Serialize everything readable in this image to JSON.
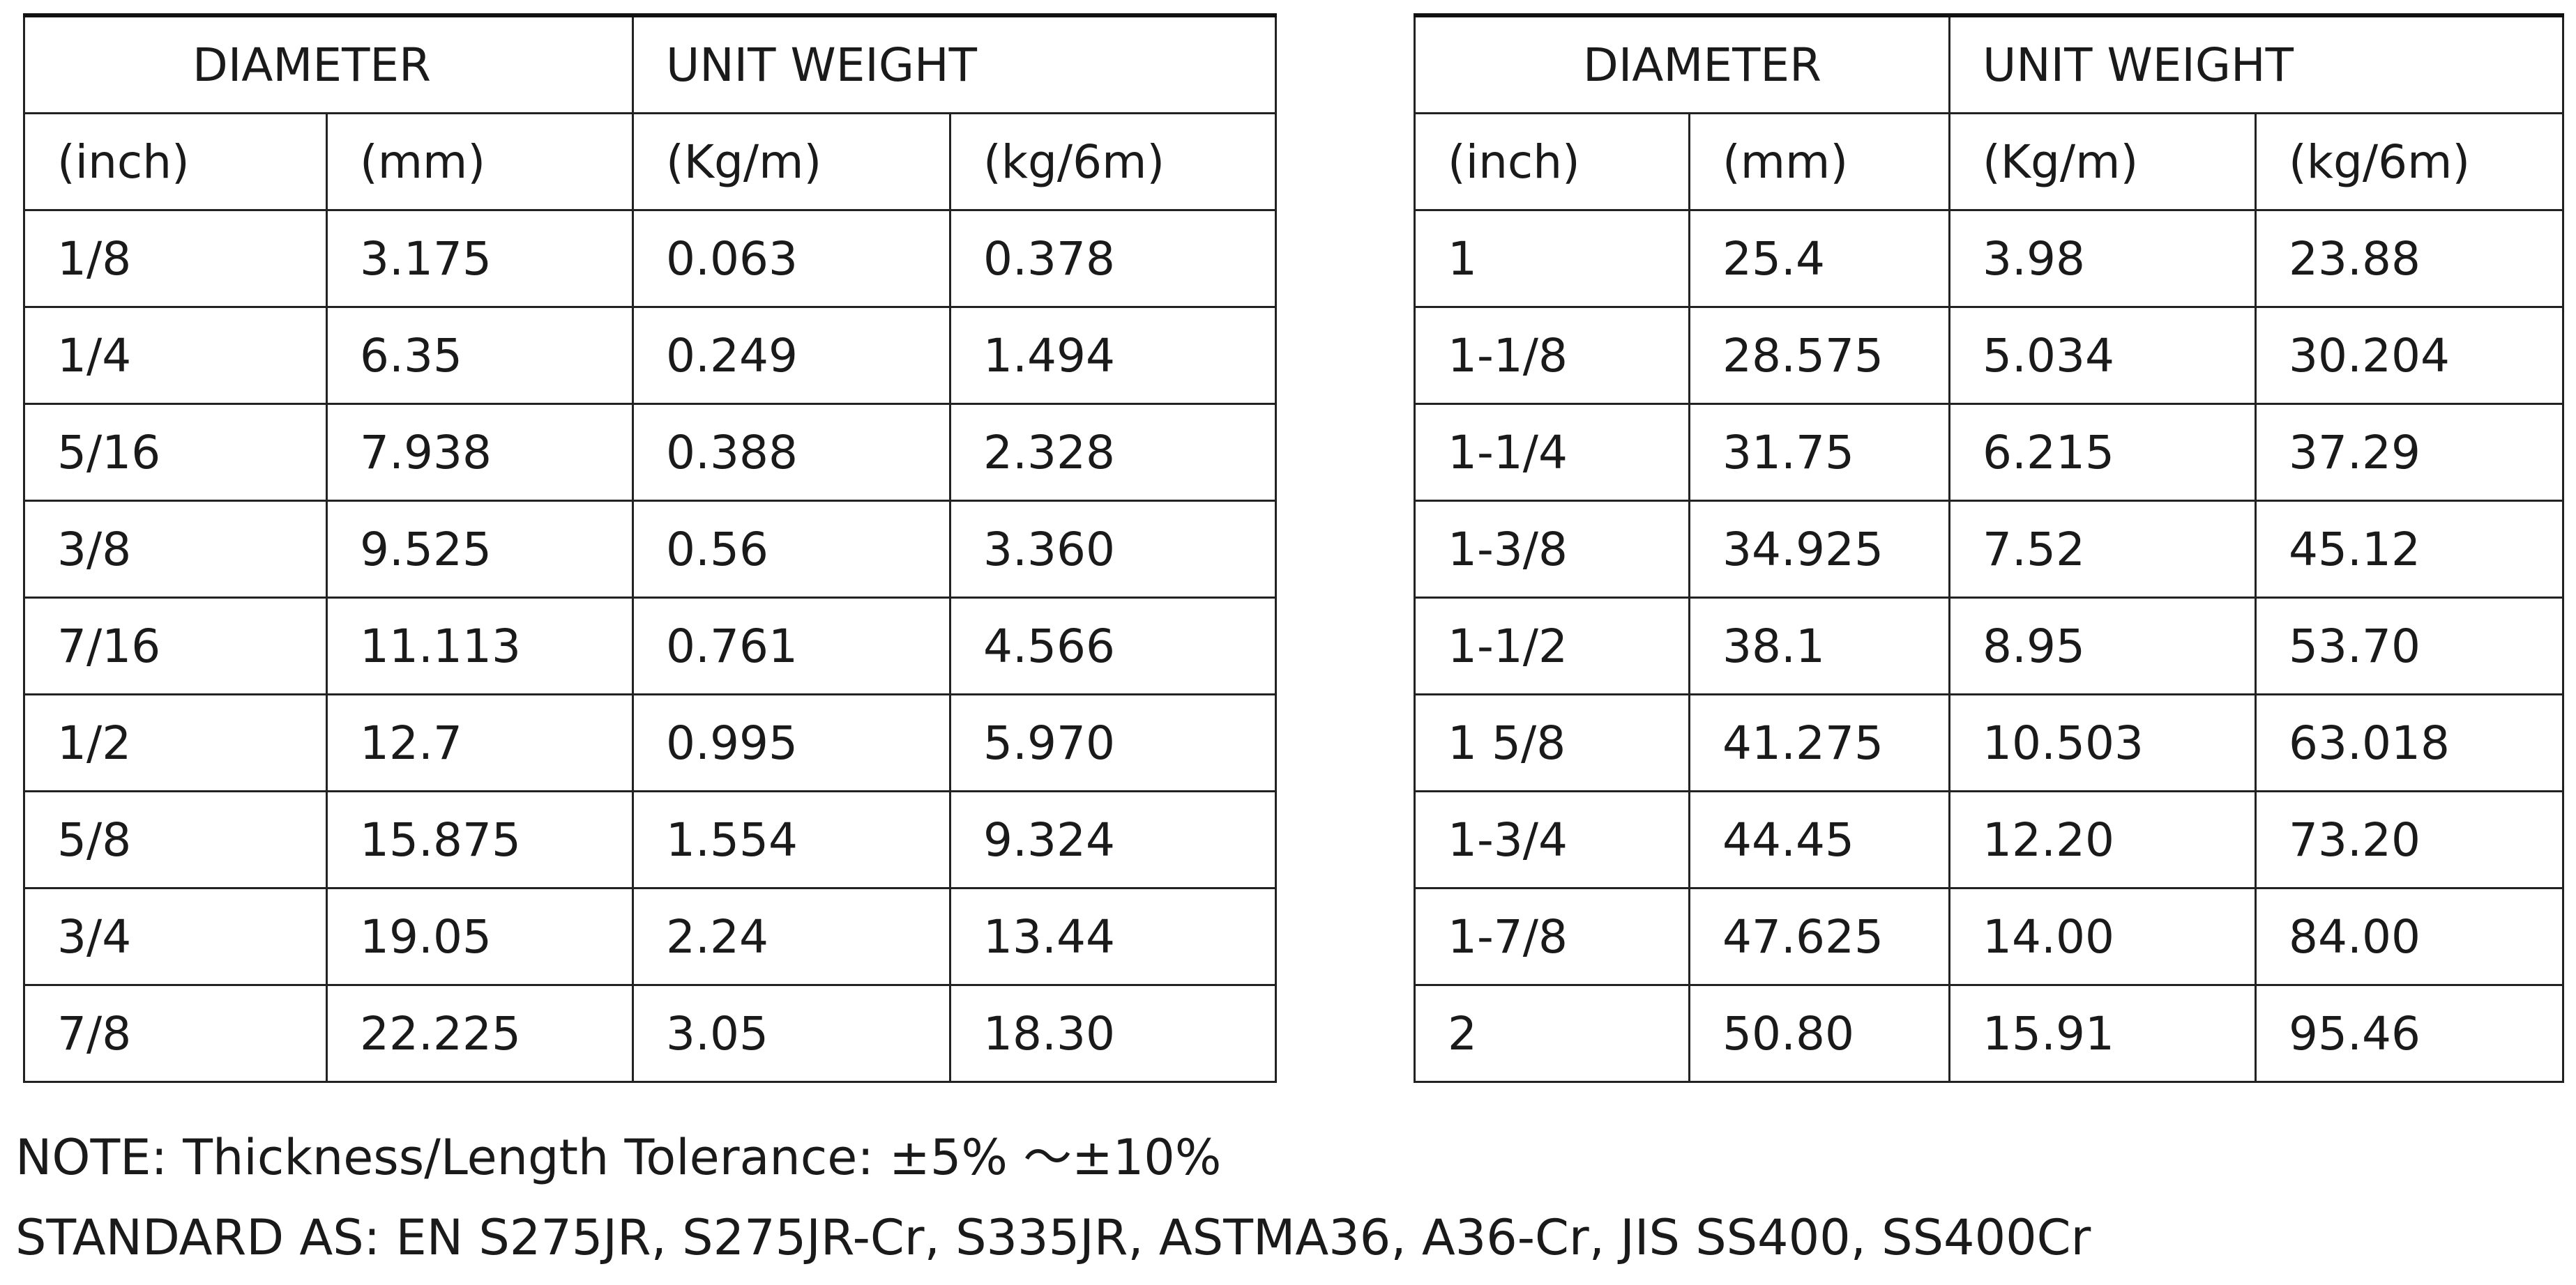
{
  "tables": [
    {
      "header": {
        "groups": [
          "DIAMETER",
          "UNIT WEIGHT"
        ],
        "units": [
          "(inch)",
          "(mm)",
          "(Kg/m)",
          "(kg/6m)"
        ]
      },
      "rows": [
        [
          "1/8",
          "3.175",
          "0.063",
          "0.378"
        ],
        [
          "1/4",
          "6.35",
          "0.249",
          "1.494"
        ],
        [
          "5/16",
          "7.938",
          "0.388",
          "2.328"
        ],
        [
          "3/8",
          "9.525",
          "0.56",
          "3.360"
        ],
        [
          "7/16",
          "11.113",
          "0.761",
          "4.566"
        ],
        [
          "1/2",
          "12.7",
          "0.995",
          "5.970"
        ],
        [
          "5/8",
          "15.875",
          "1.554",
          "9.324"
        ],
        [
          "3/4",
          "19.05",
          "2.24",
          "13.44"
        ],
        [
          "7/8",
          "22.225",
          "3.05",
          "18.30"
        ]
      ]
    },
    {
      "header": {
        "groups": [
          "DIAMETER",
          "UNIT WEIGHT"
        ],
        "units": [
          "(inch)",
          "(mm)",
          "(Kg/m)",
          "(kg/6m)"
        ]
      },
      "rows": [
        [
          "1",
          "25.4",
          "3.98",
          "23.88"
        ],
        [
          "1-1/8",
          "28.575",
          "5.034",
          "30.204"
        ],
        [
          "1-1/4",
          "31.75",
          "6.215",
          "37.29"
        ],
        [
          "1-3/8",
          "34.925",
          "7.52",
          "45.12"
        ],
        [
          "1-1/2",
          "38.1",
          "8.95",
          "53.70"
        ],
        [
          "1 5/8",
          "41.275",
          "10.503",
          "63.018"
        ],
        [
          "1-3/4",
          "44.45",
          "12.20",
          "73.20"
        ],
        [
          "1-7/8",
          "47.625",
          "14.00",
          "84.00"
        ],
        [
          "2",
          "50.80",
          "15.91",
          "95.46"
        ]
      ]
    }
  ],
  "note": "NOTE: Thickness/Length Tolerance:  ±5%  ～±10%",
  "standard": "STANDARD AS: EN S275JR, S275JR-Cr, S335JR, ASTMA36, A36-Cr, JIS SS400, SS400Cr"
}
